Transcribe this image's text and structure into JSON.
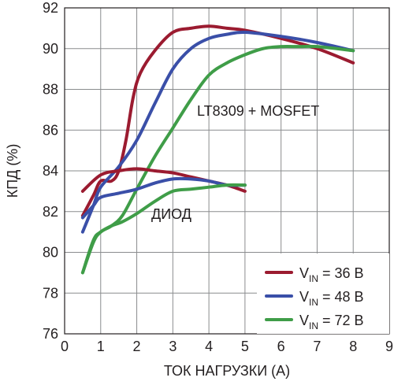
{
  "chart_data": {
    "type": "line",
    "title": "",
    "xlabel": "ТОК НАГРУЗКИ (А)",
    "ylabel": "КПД (%)",
    "xlim": [
      0,
      9
    ],
    "ylim": [
      76,
      92
    ],
    "xticks": [
      0,
      1,
      2,
      3,
      4,
      5,
      6,
      7,
      8,
      9
    ],
    "yticks": [
      76,
      78,
      80,
      82,
      84,
      86,
      88,
      90,
      92
    ],
    "grid": true,
    "legend_position": "bottom-right",
    "annotations": [
      "LT8309 + MOSFET",
      "ДИОД"
    ],
    "legend": [
      {
        "prefix": "V",
        "sub": "IN",
        "suffix": " = 36 В",
        "color": "#9b1b30"
      },
      {
        "prefix": "V",
        "sub": "IN",
        "suffix": " = 48 В",
        "color": "#3a4fa8"
      },
      {
        "prefix": "V",
        "sub": "IN",
        "suffix": " = 72 В",
        "color": "#3f9d48"
      }
    ],
    "series": [
      {
        "group": "LT8309 + MOSFET",
        "vin": "36 В",
        "color": "#9b1b30",
        "x": [
          0.5,
          0.8,
          1.0,
          1.3,
          1.5,
          1.7,
          1.9,
          2.1,
          2.5,
          3.0,
          3.5,
          4.0,
          4.5,
          5.0,
          6.0,
          7.0,
          8.0
        ],
        "y": [
          81.8,
          82.8,
          83.5,
          83.5,
          84.0,
          85.5,
          87.6,
          88.8,
          89.9,
          90.8,
          91.0,
          91.1,
          91.0,
          90.9,
          90.5,
          90.0,
          89.3
        ]
      },
      {
        "group": "LT8309 + MOSFET",
        "vin": "48 В",
        "color": "#3a4fa8",
        "x": [
          0.5,
          0.8,
          1.0,
          1.5,
          2.0,
          2.5,
          3.0,
          3.5,
          4.0,
          4.5,
          5.0,
          6.0,
          7.0,
          8.0
        ],
        "y": [
          81.0,
          82.3,
          83.2,
          84.2,
          85.5,
          87.3,
          89.0,
          90.0,
          90.5,
          90.7,
          90.8,
          90.6,
          90.3,
          89.9
        ]
      },
      {
        "group": "LT8309 + MOSFET",
        "vin": "72 В",
        "color": "#3f9d48",
        "x": [
          0.5,
          0.8,
          1.0,
          1.3,
          1.6,
          2.0,
          2.5,
          3.0,
          3.5,
          4.0,
          4.5,
          5.0,
          5.5,
          6.0,
          6.5,
          7.0,
          8.0
        ],
        "y": [
          79.0,
          80.5,
          81.0,
          81.3,
          81.8,
          83.1,
          84.7,
          86.1,
          87.5,
          88.7,
          89.3,
          89.7,
          90.0,
          90.1,
          90.1,
          90.1,
          89.9
        ]
      },
      {
        "group": "ДИОД",
        "vin": "36 В",
        "color": "#9b1b30",
        "x": [
          0.5,
          1.0,
          1.5,
          2.0,
          2.5,
          3.0,
          3.5,
          4.0,
          4.5,
          5.0
        ],
        "y": [
          83.0,
          83.8,
          84.0,
          84.1,
          84.0,
          83.9,
          83.7,
          83.5,
          83.3,
          83.0
        ]
      },
      {
        "group": "ДИОД",
        "vin": "48 В",
        "color": "#3a4fa8",
        "x": [
          0.5,
          0.8,
          1.0,
          1.5,
          2.0,
          2.5,
          3.0,
          3.5,
          4.0,
          4.5,
          5.0
        ],
        "y": [
          81.7,
          82.3,
          82.7,
          82.9,
          83.1,
          83.4,
          83.6,
          83.6,
          83.5,
          83.3,
          83.3
        ]
      },
      {
        "group": "ДИОД",
        "vin": "72 В",
        "color": "#3f9d48",
        "x": [
          0.5,
          0.8,
          1.0,
          1.3,
          1.6,
          2.0,
          2.5,
          3.0,
          3.5,
          4.0,
          4.5,
          5.0
        ],
        "y": [
          79.0,
          80.6,
          81.0,
          81.3,
          81.5,
          81.9,
          82.5,
          83.0,
          83.1,
          83.2,
          83.3,
          83.3
        ]
      }
    ]
  }
}
